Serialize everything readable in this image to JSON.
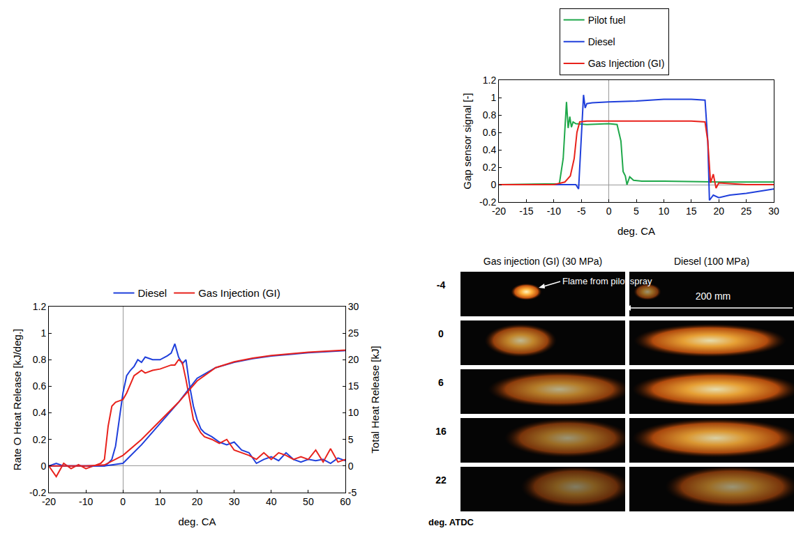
{
  "chart_data": [
    {
      "type": "line",
      "x_label": "deg. CA",
      "y_label": "Gap sensor signal [-]",
      "xlim": [
        -20,
        30
      ],
      "xticks": [
        -20,
        -15,
        -10,
        -5,
        0,
        5,
        10,
        15,
        20,
        25,
        30
      ],
      "ylim": [
        -0.2,
        1.2
      ],
      "yticks": [
        -0.2,
        0,
        0.2,
        0.4,
        0.6,
        0.8,
        1,
        1.2
      ],
      "grid": false,
      "legend": "top",
      "series": [
        {
          "name": "Pilot fuel",
          "color": "#1fa84a",
          "x": [
            -20,
            -9,
            -8.3,
            -7.7,
            -7.4,
            -7.1,
            -6.8,
            -6.5,
            -6,
            -4,
            0,
            1.5,
            2.2,
            2.6,
            3,
            3.3,
            3.8,
            4.5,
            6,
            10,
            20,
            30
          ],
          "values": [
            0,
            0.01,
            0.3,
            0.95,
            0.65,
            0.78,
            0.66,
            0.72,
            0.7,
            0.69,
            0.7,
            0.69,
            0.5,
            0.15,
            0.1,
            0.0,
            0.09,
            0.05,
            0.04,
            0.04,
            0.03,
            0.03
          ]
        },
        {
          "name": "Diesel",
          "color": "#1f3fdb",
          "x": [
            -20,
            -6,
            -5.5,
            -5,
            -4.6,
            -4.3,
            -4,
            -3,
            0,
            5,
            10,
            15,
            17.5,
            18,
            18.3,
            19,
            20,
            22,
            25,
            28,
            30
          ],
          "values": [
            0,
            0,
            -0.05,
            0.6,
            1.03,
            0.88,
            0.93,
            0.94,
            0.95,
            0.96,
            0.98,
            0.98,
            0.97,
            0.5,
            -0.18,
            -0.12,
            -0.15,
            -0.12,
            -0.1,
            -0.07,
            -0.05
          ]
        },
        {
          "name": "Gas Injection (GI)",
          "color": "#e8221c",
          "x": [
            -20,
            -10,
            -8,
            -7,
            -6.3,
            -5.8,
            -5.3,
            -4,
            0,
            5,
            10,
            15,
            17.5,
            18,
            18.5,
            19,
            19.5,
            20,
            25,
            30
          ],
          "values": [
            0,
            0,
            0.03,
            0.1,
            0.3,
            0.6,
            0.72,
            0.73,
            0.73,
            0.73,
            0.73,
            0.73,
            0.72,
            0.5,
            0.02,
            0.12,
            -0.04,
            0.02,
            0,
            0
          ]
        }
      ]
    },
    {
      "type": "line",
      "x_label": "deg. CA",
      "y_label": "Rate O Heat Release [kJ/deg.]",
      "y2_label": "Total Heat Release [kJ]",
      "xlim": [
        -20,
        60
      ],
      "xticks": [
        -20,
        -10,
        0,
        10,
        20,
        30,
        40,
        50,
        60
      ],
      "ylim": [
        -0.2,
        1.2
      ],
      "yticks": [
        -0.2,
        0,
        0.2,
        0.4,
        0.6,
        0.8,
        1,
        1.2
      ],
      "y2lim": [
        -5,
        30
      ],
      "y2ticks": [
        -5,
        0,
        5,
        10,
        15,
        20,
        25,
        30
      ],
      "grid": false,
      "legend": "top",
      "series": [
        {
          "name": "Diesel",
          "color": "#1f3fdb",
          "x": [
            -20,
            -18,
            -16,
            -14,
            -12,
            -10,
            -8,
            -6,
            -5,
            -4,
            -3,
            -2,
            -1,
            0,
            1,
            2,
            3,
            4,
            5,
            6,
            8,
            10,
            12,
            13,
            14,
            15,
            16,
            17,
            18,
            19,
            20,
            21,
            22,
            24,
            26,
            28,
            30,
            32,
            34,
            36,
            38,
            40,
            42,
            44,
            46,
            48,
            50,
            52,
            54,
            56,
            58,
            60
          ],
          "values": [
            0,
            0.02,
            0,
            0,
            0,
            0,
            0,
            0,
            0,
            0.02,
            0.05,
            0.15,
            0.35,
            0.55,
            0.68,
            0.72,
            0.75,
            0.8,
            0.78,
            0.82,
            0.8,
            0.8,
            0.83,
            0.85,
            0.92,
            0.82,
            0.77,
            0.8,
            0.6,
            0.45,
            0.35,
            0.28,
            0.25,
            0.22,
            0.18,
            0.16,
            0.18,
            0.12,
            0.1,
            0.02,
            0.05,
            0.07,
            0.04,
            0.1,
            0.05,
            0.03,
            0.05,
            0.04,
            0.05,
            0.02,
            0.06,
            0.04
          ]
        },
        {
          "name": "Gas Injection (GI)",
          "color": "#e8221c",
          "x": [
            -20,
            -18,
            -16,
            -14,
            -12,
            -10,
            -8,
            -6,
            -5,
            -4,
            -3,
            -2,
            -1,
            0,
            1,
            2,
            3,
            4,
            5,
            6,
            8,
            10,
            12,
            13,
            14,
            15,
            16,
            17,
            18,
            19,
            20,
            21,
            22,
            24,
            26,
            28,
            30,
            32,
            34,
            36,
            38,
            40,
            42,
            44,
            46,
            48,
            50,
            52,
            54,
            56,
            58,
            60
          ],
          "values": [
            0,
            -0.08,
            0.02,
            -0.02,
            0.01,
            -0.02,
            0,
            0.02,
            0.05,
            0.3,
            0.45,
            0.48,
            0.49,
            0.5,
            0.55,
            0.62,
            0.68,
            0.7,
            0.72,
            0.7,
            0.72,
            0.73,
            0.75,
            0.76,
            0.76,
            0.8,
            0.78,
            0.65,
            0.5,
            0.35,
            0.3,
            0.25,
            0.22,
            0.2,
            0.17,
            0.2,
            0.12,
            0.1,
            0.08,
            0.05,
            0.1,
            0.05,
            0.1,
            0.08,
            0.05,
            0.07,
            0.05,
            0.12,
            0.03,
            0.13,
            0.03,
            0.05
          ]
        },
        {
          "name": "Diesel",
          "color": "#1f3fdb",
          "axis": "y2",
          "x": [
            -20,
            -10,
            -5,
            0,
            5,
            10,
            15,
            20,
            25,
            30,
            35,
            40,
            45,
            50,
            55,
            60
          ],
          "values": [
            0,
            0,
            0,
            0.5,
            4,
            8,
            12,
            16.5,
            18.5,
            19.5,
            20.2,
            20.7,
            21,
            21.3,
            21.5,
            21.7
          ]
        },
        {
          "name": "Gas Injection (GI)",
          "color": "#e8221c",
          "axis": "y2",
          "x": [
            -20,
            -10,
            -5,
            0,
            5,
            10,
            15,
            20,
            25,
            30,
            35,
            40,
            45,
            50,
            55,
            60
          ],
          "values": [
            0,
            0,
            0.2,
            2,
            5,
            8.5,
            12,
            16,
            18.5,
            19.6,
            20.3,
            20.8,
            21.1,
            21.4,
            21.6,
            21.8
          ]
        }
      ]
    }
  ],
  "image_grid": {
    "columns": [
      "Gas injection (GI) (30 MPa)",
      "Diesel (100 MPa)"
    ],
    "rows": [
      "-4",
      "0",
      "6",
      "16",
      "22"
    ],
    "row_axis_label": "deg. ATDC",
    "annotations": [
      "Flame from pilot spray",
      "200 mm"
    ]
  }
}
